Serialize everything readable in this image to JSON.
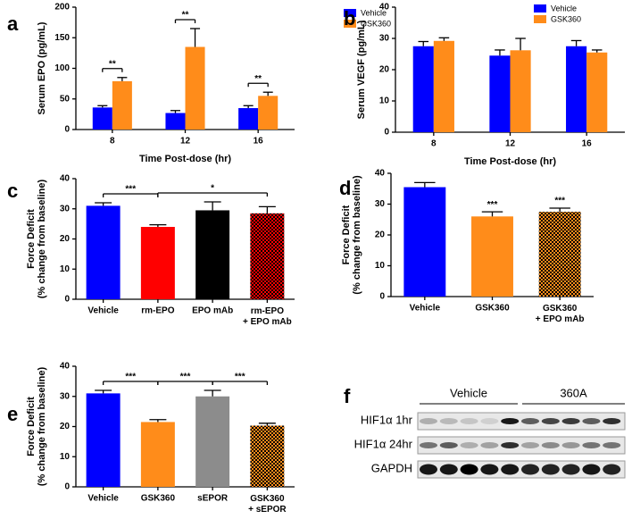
{
  "chart_data": [
    {
      "panel": "a",
      "type": "bar",
      "categories": [
        "8",
        "12",
        "16"
      ],
      "series": [
        {
          "name": "Vehicle",
          "color": "#0000ff",
          "values": [
            36,
            27,
            35
          ],
          "errors": [
            3,
            4,
            4
          ]
        },
        {
          "name": "GSK360",
          "color": "#ff8c1a",
          "values": [
            79,
            135,
            55
          ],
          "errors": [
            6,
            30,
            6
          ]
        }
      ],
      "ylim": [
        0,
        200
      ],
      "yticks": [
        0,
        50,
        100,
        150,
        200
      ],
      "ylabel": [
        "Serum EPO (pg/mL)"
      ],
      "xlabel": "Time Post-dose (hr)",
      "legend": "top-right",
      "brackets": [
        {
          "category": 0,
          "label": "**"
        },
        {
          "category": 1,
          "label": "**"
        },
        {
          "category": 2,
          "label": "**"
        }
      ]
    },
    {
      "panel": "b",
      "type": "bar",
      "categories": [
        "8",
        "12",
        "16"
      ],
      "series": [
        {
          "name": "Vehicle",
          "color": "#0000ff",
          "values": [
            27.5,
            24.5,
            27.5
          ],
          "errors": [
            1.5,
            1.8,
            1.8
          ]
        },
        {
          "name": "GSK360",
          "color": "#ff8c1a",
          "values": [
            29.2,
            26.2,
            25.5
          ],
          "errors": [
            1,
            3.8,
            0.8
          ]
        }
      ],
      "ylim": [
        0,
        40
      ],
      "yticks": [
        0,
        10,
        20,
        30,
        40
      ],
      "ylabel": [
        "Serum VEGF (pg/mL)"
      ],
      "xlabel": "Time Post-dose (hr)",
      "legend": "top-right"
    },
    {
      "panel": "c",
      "type": "bar",
      "categories": [
        "Vehicle",
        "rm-EPO",
        "EPO mAb",
        "rm-EPO\n+ EPO mAb"
      ],
      "series": [
        {
          "values": [
            31,
            24,
            29.5,
            28.5
          ],
          "errors": [
            1,
            0.7,
            2.8,
            2.2
          ],
          "colors": [
            "#0000ff",
            "#ff0000",
            "#000000",
            "#ff0000"
          ],
          "dots": [
            null,
            null,
            null,
            "#000000"
          ]
        }
      ],
      "ylim": [
        0,
        40
      ],
      "yticks": [
        0,
        10,
        20,
        30,
        40
      ],
      "ylabel": [
        "Force Deficit",
        "(% change from baseline)"
      ],
      "brackets": [
        {
          "from": 0,
          "to": 1,
          "label": "***"
        },
        {
          "from": 1,
          "to": 3,
          "label": "*"
        }
      ]
    },
    {
      "panel": "d",
      "type": "bar",
      "categories": [
        "Vehicle",
        "GSK360",
        "GSK360\n+ EPO mAb"
      ],
      "series": [
        {
          "values": [
            35.5,
            26,
            27.5
          ],
          "errors": [
            1.5,
            1.5,
            1.2
          ],
          "colors": [
            "#0000ff",
            "#ff8c1a",
            "#ff8c1a"
          ],
          "dots": [
            null,
            null,
            "#000000"
          ],
          "annotations": [
            null,
            "***",
            "***"
          ]
        }
      ],
      "ylim": [
        0,
        40
      ],
      "yticks": [
        0,
        10,
        20,
        30,
        40
      ],
      "ylabel": [
        "Force Deficit",
        "(% change from baseline)"
      ]
    },
    {
      "panel": "e",
      "type": "bar",
      "categories": [
        "Vehicle",
        "GSK360",
        "sEPOR",
        "GSK360\n+ sEPOR"
      ],
      "series": [
        {
          "values": [
            31,
            21.5,
            30,
            20.3
          ],
          "errors": [
            1,
            0.8,
            2,
            0.8
          ],
          "colors": [
            "#0000ff",
            "#ff8c1a",
            "#8c8c8c",
            "#ff8c1a"
          ],
          "dots": [
            null,
            null,
            null,
            "#000000"
          ]
        }
      ],
      "ylim": [
        0,
        40
      ],
      "yticks": [
        0,
        10,
        20,
        30,
        40
      ],
      "ylabel": [
        "Force Deficit",
        "(% change from baseline)"
      ],
      "brackets": [
        {
          "from": 0,
          "to": 1,
          "label": "***"
        },
        {
          "from": 1,
          "to": 2,
          "label": "***"
        },
        {
          "from": 2,
          "to": 3,
          "label": "***"
        }
      ]
    }
  ],
  "blot": {
    "panel": "f",
    "groups": [
      "Vehicle",
      "360A"
    ],
    "rows": [
      "HIF1α 1hr",
      "HIF1α 24hr",
      "GAPDH"
    ]
  }
}
